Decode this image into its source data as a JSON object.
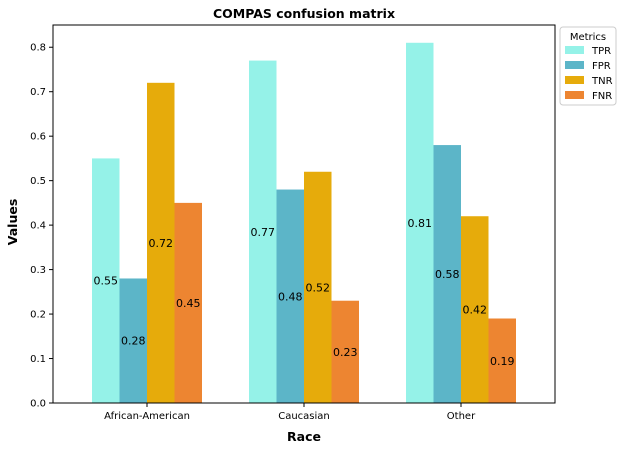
{
  "chart_data": {
    "type": "bar",
    "title": "COMPAS confusion matrix",
    "xlabel": "Race",
    "ylabel": "Values",
    "categories": [
      "African-American",
      "Caucasian",
      "Other"
    ],
    "series": [
      {
        "name": "TPR",
        "values": [
          0.55,
          0.77,
          0.81
        ],
        "color": "#95f2e8"
      },
      {
        "name": "FPR",
        "values": [
          0.28,
          0.48,
          0.58
        ],
        "color": "#5cb5c8"
      },
      {
        "name": "TNR",
        "values": [
          0.72,
          0.52,
          0.42
        ],
        "color": "#e6ab0b"
      },
      {
        "name": "FNR",
        "values": [
          0.45,
          0.23,
          0.19
        ],
        "color": "#ed8531"
      }
    ],
    "ylim": [
      0,
      0.85
    ],
    "yticks": [
      "0.0",
      "0.1",
      "0.2",
      "0.3",
      "0.4",
      "0.5",
      "0.6",
      "0.7",
      "0.8"
    ],
    "legend": {
      "title": "Metrics",
      "placement": "outside-top-right"
    },
    "grid": false
  }
}
